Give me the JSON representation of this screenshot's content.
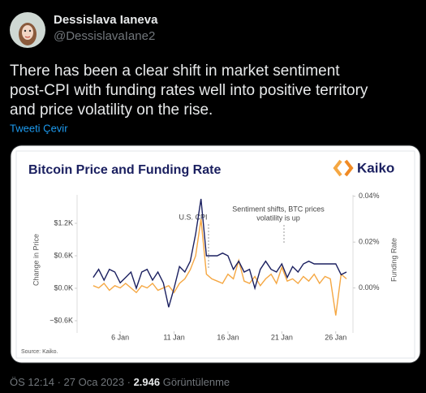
{
  "tweet": {
    "author": "Dessislava Ianeva",
    "handle": "@DessislavaIane2",
    "text_lines": [
      "There has been a clear shift in market sentiment",
      "post-CPI with funding rates well into positive territory",
      "and price volatility on the rise."
    ],
    "translate": "Tweeti Çevir",
    "footer": {
      "time": "ÖS 12:14",
      "separator": "·",
      "date": "27 Oca 2023",
      "views": "2.946",
      "views_label": "Görüntülenme"
    }
  },
  "chart_data": {
    "type": "line",
    "title": "Bitcoin Price and Funding Rate",
    "logo": "Kaiko",
    "source": "Source: Kaiko.",
    "ylabel": "Change in Price",
    "y2label": "Funding Rate",
    "annotations": [
      [
        "U.S. CPI"
      ],
      [
        "Sentiment shifts, BTC prices",
        "volatility is up"
      ]
    ],
    "x": [
      3.5,
      4,
      4.5,
      5,
      5.5,
      6,
      6.5,
      7,
      7.5,
      8,
      8.5,
      9,
      9.5,
      10,
      10.5,
      11,
      11.5,
      12,
      12.5,
      13,
      13.5,
      14,
      14.5,
      15,
      15.5,
      16,
      16.5,
      17,
      17.5,
      18,
      18.5,
      19,
      19.5,
      20,
      20.5,
      21,
      21.5,
      22,
      22.5,
      23,
      23.5,
      24,
      24.5,
      25,
      25.5,
      26,
      26.5,
      27
    ],
    "xlim": [
      2,
      27.6
    ],
    "xticks": [
      {
        "value": 6,
        "label": "6 Jan"
      },
      {
        "value": 11,
        "label": "11 Jan"
      },
      {
        "value": 16,
        "label": "16 Jan"
      },
      {
        "value": 21,
        "label": "21 Jan"
      },
      {
        "value": 26,
        "label": "26 Jan"
      }
    ],
    "ylim": [
      -0.8,
      1.7
    ],
    "yticks": [
      {
        "value": -0.6,
        "label": "−$0.6K"
      },
      {
        "value": 0,
        "label": "$0.0K"
      },
      {
        "value": 0.6,
        "label": "$0.6K"
      },
      {
        "value": 1.2,
        "label": "$1.2K"
      }
    ],
    "y2lim": [
      -0.019,
      0.04
    ],
    "y2ticks": [
      {
        "value": 0,
        "label": "0.00%"
      },
      {
        "value": 0.02,
        "label": "0.02%"
      },
      {
        "value": 0.04,
        "label": "0.04%"
      }
    ],
    "series": [
      {
        "name": "Funding Rate",
        "color": "#f5a742",
        "axis": "y2",
        "values": [
          0.001,
          0.0,
          0.002,
          -0.001,
          0.001,
          0.0,
          0.002,
          0.0,
          -0.002,
          0.001,
          0.0,
          0.002,
          -0.001,
          0.0,
          0.001,
          -0.002,
          0.002,
          0.004,
          0.008,
          0.014,
          0.03,
          0.006,
          0.004,
          0.003,
          0.002,
          0.006,
          0.004,
          0.012,
          0.003,
          0.002,
          0.005,
          0.001,
          0.004,
          0.006,
          0.002,
          0.009,
          0.003,
          0.004,
          0.002,
          0.005,
          0.003,
          0.006,
          0.002,
          0.005,
          0.004,
          -0.012,
          0.006,
          0.004
        ]
      },
      {
        "name": "Change in Price",
        "color": "#1b2060",
        "values": [
          0.2,
          0.35,
          0.15,
          0.35,
          0.3,
          0.1,
          0.2,
          0.3,
          0.0,
          0.3,
          0.35,
          0.15,
          0.3,
          0.1,
          -0.35,
          0.0,
          0.4,
          0.3,
          0.5,
          1.0,
          1.65,
          0.6,
          0.6,
          0.6,
          0.65,
          0.6,
          0.35,
          0.5,
          0.3,
          0.35,
          0.0,
          0.35,
          0.5,
          0.35,
          0.3,
          0.45,
          0.2,
          0.4,
          0.3,
          0.45,
          0.5,
          0.45,
          0.45,
          0.45,
          0.45,
          0.45,
          0.25,
          0.3
        ]
      }
    ]
  }
}
